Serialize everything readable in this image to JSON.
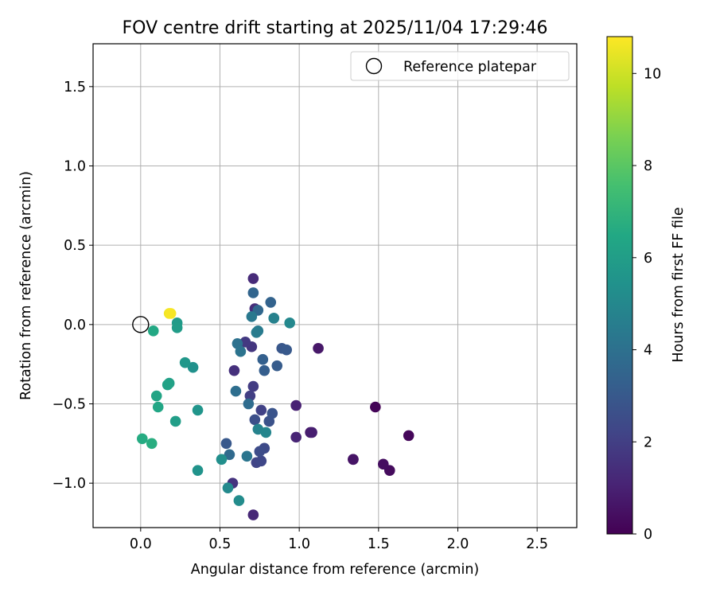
{
  "chart_data": {
    "type": "scatter",
    "title": "FOV centre drift starting at 2025/11/04 17:29:46",
    "xlabel": "Angular distance from reference (arcmin)",
    "ylabel": "Rotation from reference (arcmin)",
    "xlim": [
      -0.3,
      2.75
    ],
    "ylim": [
      -1.28,
      1.77
    ],
    "xticks": [
      "0.0",
      "0.5",
      "1.0",
      "1.5",
      "2.0",
      "2.5"
    ],
    "xtick_values": [
      0.0,
      0.5,
      1.0,
      1.5,
      2.0,
      2.5
    ],
    "yticks": [
      "1.5",
      "1.0",
      "0.5",
      "0.0",
      "−0.5",
      "−1.0"
    ],
    "ytick_values": [
      1.5,
      1.0,
      0.5,
      0.0,
      -0.5,
      -1.0
    ],
    "grid": true,
    "legend": {
      "placement": "top-right",
      "label": "Reference platepar"
    },
    "reference": {
      "x": 0.0,
      "y": 0.0
    },
    "colorbar": {
      "label": "Hours from first FF file",
      "range": [
        0,
        10.8
      ],
      "ticks": [
        "0",
        "2",
        "4",
        "6",
        "8",
        "10"
      ],
      "tick_values": [
        0,
        2,
        4,
        6,
        8,
        10
      ],
      "colormap": "viridis"
    },
    "points": [
      {
        "x": 1.48,
        "y": -0.52,
        "h": 0.1
      },
      {
        "x": 1.69,
        "y": -0.7,
        "h": 0.2
      },
      {
        "x": 1.57,
        "y": -0.92,
        "h": 0.3
      },
      {
        "x": 1.53,
        "y": -0.88,
        "h": 0.4
      },
      {
        "x": 1.34,
        "y": -0.85,
        "h": 0.5
      },
      {
        "x": 1.34,
        "y": -0.85,
        "h": 0.6
      },
      {
        "x": 1.12,
        "y": -0.15,
        "h": 0.7
      },
      {
        "x": 1.07,
        "y": -0.68,
        "h": 0.8
      },
      {
        "x": 1.08,
        "y": -0.68,
        "h": 0.9
      },
      {
        "x": 0.98,
        "y": -0.51,
        "h": 1.0
      },
      {
        "x": 0.98,
        "y": -0.71,
        "h": 1.1
      },
      {
        "x": 0.71,
        "y": -1.2,
        "h": 1.2
      },
      {
        "x": 0.71,
        "y": 0.29,
        "h": 1.3
      },
      {
        "x": 0.72,
        "y": 0.1,
        "h": 1.4
      },
      {
        "x": 0.59,
        "y": -0.29,
        "h": 1.5
      },
      {
        "x": 0.58,
        "y": -1.0,
        "h": 1.6
      },
      {
        "x": 0.7,
        "y": -0.14,
        "h": 1.7
      },
      {
        "x": 0.66,
        "y": -0.11,
        "h": 1.8
      },
      {
        "x": 0.71,
        "y": -0.39,
        "h": 1.9
      },
      {
        "x": 0.69,
        "y": -0.45,
        "h": 2.0
      },
      {
        "x": 0.76,
        "y": -0.54,
        "h": 2.1
      },
      {
        "x": 0.73,
        "y": -0.87,
        "h": 2.2
      },
      {
        "x": 0.76,
        "y": -0.86,
        "h": 2.3
      },
      {
        "x": 0.78,
        "y": -0.78,
        "h": 2.4
      },
      {
        "x": 0.75,
        "y": -0.8,
        "h": 2.5
      },
      {
        "x": 0.72,
        "y": -0.6,
        "h": 2.6
      },
      {
        "x": 0.81,
        "y": -0.61,
        "h": 2.7
      },
      {
        "x": 0.83,
        "y": -0.56,
        "h": 2.8
      },
      {
        "x": 0.89,
        "y": -0.15,
        "h": 2.9
      },
      {
        "x": 0.92,
        "y": -0.16,
        "h": 3.0
      },
      {
        "x": 0.86,
        "y": -0.26,
        "h": 3.1
      },
      {
        "x": 0.78,
        "y": -0.29,
        "h": 3.2
      },
      {
        "x": 0.77,
        "y": -0.22,
        "h": 3.3
      },
      {
        "x": 0.82,
        "y": 0.14,
        "h": 3.4
      },
      {
        "x": 0.71,
        "y": 0.2,
        "h": 3.5
      },
      {
        "x": 0.74,
        "y": 0.09,
        "h": 3.6
      },
      {
        "x": 0.54,
        "y": -0.75,
        "h": 3.0
      },
      {
        "x": 0.56,
        "y": -0.82,
        "h": 3.7
      },
      {
        "x": 0.68,
        "y": -0.5,
        "h": 3.8
      },
      {
        "x": 0.6,
        "y": -0.42,
        "h": 3.9
      },
      {
        "x": 0.61,
        "y": -0.12,
        "h": 4.0
      },
      {
        "x": 0.63,
        "y": -0.17,
        "h": 4.1
      },
      {
        "x": 0.67,
        "y": -0.83,
        "h": 4.2
      },
      {
        "x": 0.7,
        "y": 0.05,
        "h": 4.3
      },
      {
        "x": 0.74,
        "y": -0.04,
        "h": 4.4
      },
      {
        "x": 0.73,
        "y": -0.05,
        "h": 4.5
      },
      {
        "x": 0.84,
        "y": 0.04,
        "h": 4.6
      },
      {
        "x": 0.84,
        "y": 0.04,
        "h": 4.7
      },
      {
        "x": 0.74,
        "y": -0.66,
        "h": 4.8
      },
      {
        "x": 0.79,
        "y": -0.68,
        "h": 4.9
      },
      {
        "x": 0.94,
        "y": 0.01,
        "h": 5.0
      },
      {
        "x": 0.55,
        "y": -1.03,
        "h": 5.1
      },
      {
        "x": 0.62,
        "y": -1.11,
        "h": 5.2
      },
      {
        "x": 0.51,
        "y": -0.85,
        "h": 5.3
      },
      {
        "x": 0.33,
        "y": -0.27,
        "h": 5.4
      },
      {
        "x": 0.36,
        "y": -0.92,
        "h": 5.5
      },
      {
        "x": 0.36,
        "y": -0.54,
        "h": 5.6
      },
      {
        "x": 0.28,
        "y": -0.24,
        "h": 5.7
      },
      {
        "x": 0.23,
        "y": 0.01,
        "h": 5.8
      },
      {
        "x": 0.23,
        "y": -0.02,
        "h": 5.9
      },
      {
        "x": 0.22,
        "y": -0.61,
        "h": 6.0
      },
      {
        "x": 0.18,
        "y": -0.37,
        "h": 6.1
      },
      {
        "x": 0.17,
        "y": -0.38,
        "h": 6.2
      },
      {
        "x": 0.1,
        "y": -0.45,
        "h": 6.3
      },
      {
        "x": 0.11,
        "y": -0.52,
        "h": 6.4
      },
      {
        "x": 0.08,
        "y": -0.04,
        "h": 6.5
      },
      {
        "x": 0.01,
        "y": -0.72,
        "h": 6.6
      },
      {
        "x": 0.07,
        "y": -0.75,
        "h": 6.7
      },
      {
        "x": 0.18,
        "y": 0.07,
        "h": 10.6
      },
      {
        "x": 0.19,
        "y": 0.07,
        "h": 10.7
      }
    ]
  }
}
